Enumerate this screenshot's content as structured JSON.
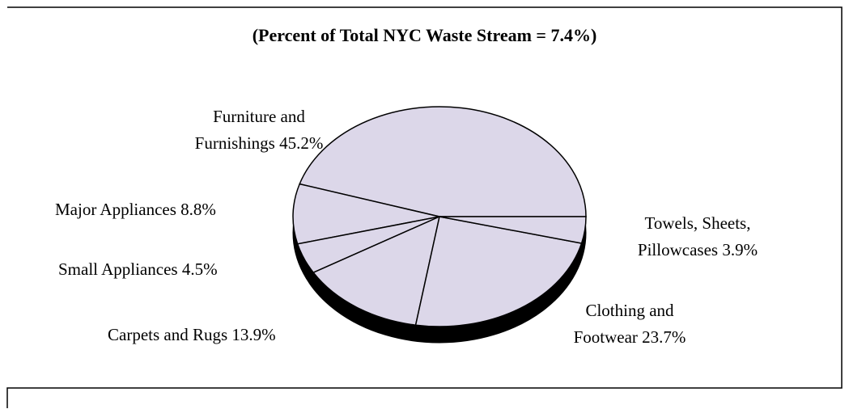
{
  "chart_data": {
    "type": "pie",
    "title": "(Percent of Total NYC Waste Stream = 7.4%)",
    "categories": [
      "Furniture and Furnishings",
      "Major Appliances",
      "Small Appliances",
      "Carpets and Rugs",
      "Clothing and Footwear",
      "Towels, Sheets, Pillowcases"
    ],
    "values": [
      45.2,
      8.8,
      4.5,
      13.9,
      23.7,
      3.9
    ],
    "value_labels": [
      "45.2%",
      "8.8%",
      "4.5%",
      "13.9%",
      "23.7%",
      "3.9%"
    ],
    "color": "#dcd7e9"
  }
}
